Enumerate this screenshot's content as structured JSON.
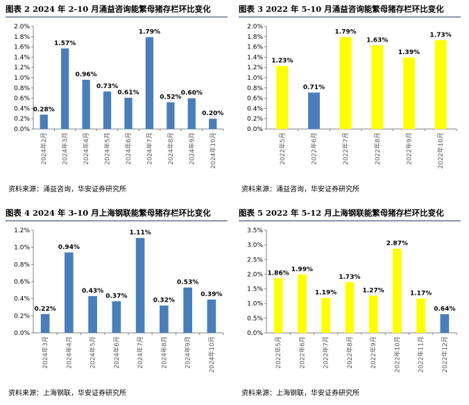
{
  "chart_data": [
    {
      "type": "bar",
      "title": "图表 2 2024 年 2-10 月涌益咨询能繁母猪存栏环比变化",
      "categories": [
        "2024年2月",
        "2024年3月",
        "2024年4月",
        "2024年5月",
        "2024年6月",
        "2024年7月",
        "2024年8月",
        "2024年9月",
        "2024年10月"
      ],
      "values": [
        0.28,
        1.57,
        0.96,
        0.73,
        0.61,
        1.79,
        0.52,
        0.6,
        0.2
      ],
      "data_labels": [
        "0.28%",
        "1.57%",
        "0.96%",
        "0.73%",
        "0.61%",
        "1.79%",
        "0.52%",
        "0.60%",
        "0.20%"
      ],
      "bar_colors": [
        "#4a7ebb",
        "#4a7ebb",
        "#4a7ebb",
        "#4a7ebb",
        "#4a7ebb",
        "#4a7ebb",
        "#4a7ebb",
        "#4a7ebb",
        "#4a7ebb"
      ],
      "ylim": [
        0,
        2.0
      ],
      "yticks": [
        "0.0%",
        "0.2%",
        "0.4%",
        "0.6%",
        "0.8%",
        "1.0%",
        "1.2%",
        "1.4%",
        "1.6%",
        "1.8%",
        "2.0%"
      ],
      "grid": false,
      "source": "资料来源：涌益咨询，华安证券研究所"
    },
    {
      "type": "bar",
      "title": "图表 3 2022 年 5-10 月涌益咨询能繁母猪存栏环比变化",
      "categories": [
        "2022年5月",
        "2022年6月",
        "2022年7月",
        "2022年8月",
        "2022年9月",
        "2022年10月"
      ],
      "values": [
        1.23,
        0.71,
        1.79,
        1.63,
        1.39,
        1.73
      ],
      "data_labels": [
        "1.23%",
        "0.71%",
        "1.79%",
        "1.63%",
        "1.39%",
        "1.73%"
      ],
      "bar_colors": [
        "#ffff00",
        "#4a7ebb",
        "#ffff00",
        "#ffff00",
        "#ffff00",
        "#ffff00"
      ],
      "ylim": [
        0,
        2.0
      ],
      "yticks": [
        "0.0%",
        "0.2%",
        "0.4%",
        "0.6%",
        "0.8%",
        "1.0%",
        "1.2%",
        "1.4%",
        "1.6%",
        "1.8%",
        "2.0%"
      ],
      "grid": false,
      "source": "资料来源：涌益咨询，华安证券研究所"
    },
    {
      "type": "bar",
      "title": "图表 4 2024 年 3-10 月上海钢联能繁母猪存栏环比变化",
      "categories": [
        "2024年3月",
        "2024年4月",
        "2024年5月",
        "2024年6月",
        "2024年7月",
        "2024年8月",
        "2024年9月",
        "2024年10月"
      ],
      "values": [
        0.22,
        0.94,
        0.43,
        0.37,
        1.11,
        0.32,
        0.53,
        0.39
      ],
      "data_labels": [
        "0.22%",
        "0.94%",
        "0.43%",
        "0.37%",
        "1.11%",
        "0.32%",
        "0.53%",
        "0.39%"
      ],
      "bar_colors": [
        "#4a7ebb",
        "#4a7ebb",
        "#4a7ebb",
        "#4a7ebb",
        "#4a7ebb",
        "#4a7ebb",
        "#4a7ebb",
        "#4a7ebb"
      ],
      "ylim": [
        0,
        1.2
      ],
      "yticks": [
        "0.0%",
        "0.2%",
        "0.4%",
        "0.6%",
        "0.8%",
        "1.0%",
        "1.2%"
      ],
      "grid": false,
      "source": "资料来源：上海钢联，华安证券研究所"
    },
    {
      "type": "bar",
      "title": "图表 5 2022 年 5-12 月上海钢联能繁母猪存栏环比变化",
      "categories": [
        "2022年5月",
        "2022年6月",
        "2022年7月",
        "2022年8月",
        "2022年9月",
        "2022年10月",
        "2022年11月",
        "2022年12月"
      ],
      "values": [
        1.86,
        1.99,
        1.19,
        1.73,
        1.27,
        2.87,
        1.17,
        0.64
      ],
      "data_labels": [
        "1.86%",
        "1.99%",
        "1.19%",
        "1.73%",
        "1.27%",
        "2.87%",
        "1.17%",
        "0.64%"
      ],
      "bar_colors": [
        "#ffff00",
        "#ffff00",
        "#ffff00",
        "#ffff00",
        "#ffff00",
        "#ffff00",
        "#ffff00",
        "#4a7ebb"
      ],
      "ylim": [
        0,
        3.5
      ],
      "yticks": [
        "0.0%",
        "0.5%",
        "1.0%",
        "1.5%",
        "2.0%",
        "2.5%",
        "3.0%",
        "3.5%"
      ],
      "grid": false,
      "source": "资料来源：上海钢联，华安证券研究所"
    }
  ]
}
